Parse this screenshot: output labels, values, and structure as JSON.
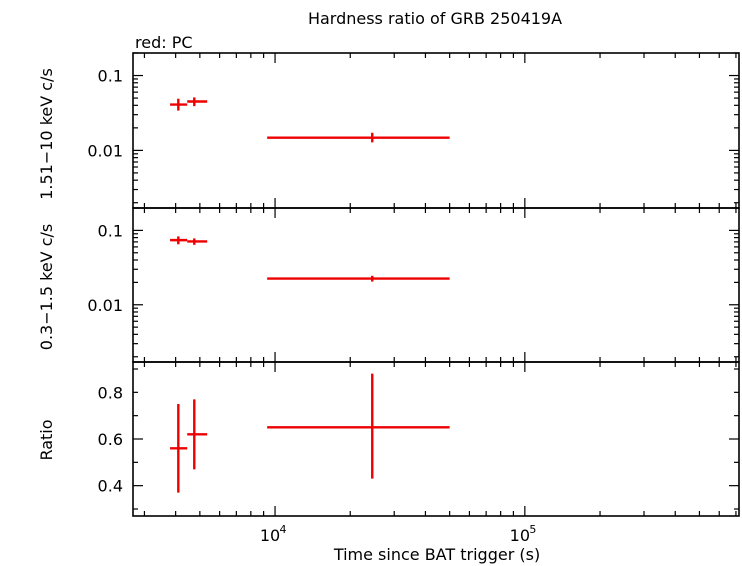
{
  "chart_data": {
    "type": "scatter",
    "title": "Hardness ratio of GRB 250419A",
    "legend_note": "red: PC",
    "xlabel": "Time since BAT trigger (s)",
    "xscale": "log",
    "xlim": [
      2700,
      720000
    ],
    "x_ticks": [
      {
        "value": 10000,
        "base": "10",
        "exp": "4"
      },
      {
        "value": 100000,
        "base": "10",
        "exp": "5"
      }
    ],
    "series_color": "#ee0000",
    "panels": [
      {
        "id": "hard",
        "ylabel": "1.51−10 keV c/s",
        "yscale": "log",
        "ylim": [
          0.0017,
          0.2
        ],
        "ytick_labels": [
          {
            "value": 0.1,
            "label": "0.1"
          },
          {
            "value": 0.01,
            "label": "0.01"
          }
        ],
        "points": [
          {
            "x": 4100,
            "xlo": 3800,
            "xhi": 4450,
            "y": 0.041,
            "ylo": 0.034,
            "yhi": 0.049
          },
          {
            "x": 4750,
            "xlo": 4450,
            "xhi": 5350,
            "y": 0.045,
            "ylo": 0.039,
            "yhi": 0.051
          },
          {
            "x": 24500,
            "xlo": 9300,
            "xhi": 50000,
            "y": 0.0148,
            "ylo": 0.0128,
            "yhi": 0.0172
          }
        ]
      },
      {
        "id": "soft",
        "ylabel": "0.3−1.5 keV c/s",
        "yscale": "log",
        "ylim": [
          0.0017,
          0.2
        ],
        "ytick_labels": [
          {
            "value": 0.1,
            "label": "0.1"
          },
          {
            "value": 0.01,
            "label": "0.01"
          }
        ],
        "points": [
          {
            "x": 4100,
            "xlo": 3800,
            "xhi": 4450,
            "y": 0.074,
            "ylo": 0.065,
            "yhi": 0.083
          },
          {
            "x": 4750,
            "xlo": 4450,
            "xhi": 5350,
            "y": 0.071,
            "ylo": 0.064,
            "yhi": 0.078
          },
          {
            "x": 24500,
            "xlo": 9300,
            "xhi": 50000,
            "y": 0.0225,
            "ylo": 0.0205,
            "yhi": 0.0245
          }
        ]
      },
      {
        "id": "ratio",
        "ylabel": "Ratio",
        "yscale": "linear",
        "ylim": [
          0.27,
          0.93
        ],
        "ytick_labels": [
          {
            "value": 0.4,
            "label": "0.4"
          },
          {
            "value": 0.6,
            "label": "0.6"
          },
          {
            "value": 0.8,
            "label": "0.8"
          }
        ],
        "points": [
          {
            "x": 4100,
            "xlo": 3800,
            "xhi": 4450,
            "y": 0.56,
            "ylo": 0.37,
            "yhi": 0.75
          },
          {
            "x": 4750,
            "xlo": 4450,
            "xhi": 5350,
            "y": 0.62,
            "ylo": 0.47,
            "yhi": 0.77
          },
          {
            "x": 24500,
            "xlo": 9300,
            "xhi": 50000,
            "y": 0.65,
            "ylo": 0.43,
            "yhi": 0.88
          }
        ]
      }
    ]
  }
}
